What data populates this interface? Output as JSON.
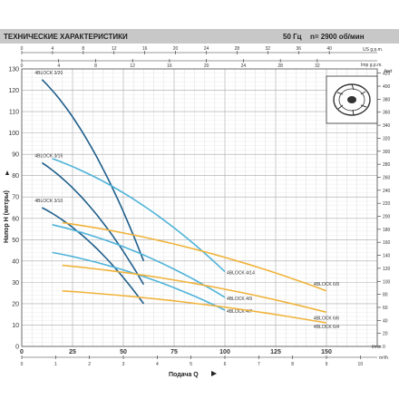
{
  "header": {
    "title": "ТЕХНИЧЕСКИЕ ХАРАКТЕРИСТИКИ",
    "freq": "50 Гц",
    "speed": "n= 2900 об/мин"
  },
  "icon": "impeller-icon",
  "colors": {
    "header_bg": "#c8c8c8",
    "grid": "#bfbfbf",
    "dark_blue": "#1f5f8b",
    "light_blue": "#4fb3d9",
    "orange": "#f0b33c"
  },
  "chart_data": {
    "type": "line",
    "xlabel": "Подача Q",
    "ylabel": "Напор H (метры)",
    "xlim": [
      0,
      175
    ],
    "ylim": [
      0,
      130
    ],
    "x_unit": "l/min",
    "x_ticks": [
      "0",
      "25",
      "50",
      "75",
      "100",
      "125",
      "150"
    ],
    "y_ticks_left": [
      "0",
      "10",
      "20",
      "30",
      "40",
      "50",
      "60",
      "70",
      "80",
      "90",
      "100",
      "110",
      "120",
      "130"
    ],
    "secondary_axes": {
      "top_us_gpm": {
        "unit": "US g.p.m.",
        "ticks": [
          "0",
          "4",
          "8",
          "12",
          "16",
          "20",
          "24",
          "28",
          "32",
          "36",
          "40"
        ]
      },
      "top_imp_gpm": {
        "unit": "Imp g.p.m.",
        "ticks": [
          "0",
          "4",
          "8",
          "12",
          "16",
          "20",
          "24",
          "28",
          "32"
        ]
      },
      "right_feet": {
        "unit": "feet",
        "ticks": [
          "0",
          "20",
          "40",
          "60",
          "80",
          "100",
          "120",
          "140",
          "160",
          "180",
          "200",
          "220",
          "240",
          "260",
          "280",
          "300",
          "320",
          "340",
          "360",
          "380",
          "400",
          "420"
        ]
      },
      "bottom_m3h": {
        "unit": "m³/h",
        "ticks": [
          "0",
          "1",
          "2",
          "3",
          "4",
          "5",
          "6",
          "7",
          "8",
          "9",
          "10"
        ]
      }
    },
    "series": [
      {
        "name": "4BLOCK 3/20",
        "color": "#1f5f8b",
        "x": [
          10,
          60
        ],
        "y": [
          125,
          40
        ]
      },
      {
        "name": "4BLOCK 3/15",
        "color": "#1f5f8b",
        "x": [
          10,
          60
        ],
        "y": [
          86,
          29
        ]
      },
      {
        "name": "4BLOCK 3/10",
        "color": "#1f5f8b",
        "x": [
          10,
          60
        ],
        "y": [
          65,
          20
        ]
      },
      {
        "name": "4BLOCK 4/14",
        "color": "#4fb3d9",
        "x": [
          15,
          100
        ],
        "y": [
          88,
          35
        ]
      },
      {
        "name": "4BLOCK 4/9",
        "color": "#4fb3d9",
        "x": [
          15,
          100
        ],
        "y": [
          57,
          23
        ]
      },
      {
        "name": "4BLOCK 4/7",
        "color": "#4fb3d9",
        "x": [
          15,
          100
        ],
        "y": [
          44,
          17
        ]
      },
      {
        "name": "4BLOCK 6/9",
        "color": "#f0b33c",
        "x": [
          20,
          150
        ],
        "y": [
          58,
          26
        ]
      },
      {
        "name": "4BLOCK 6/6",
        "color": "#f0b33c",
        "x": [
          20,
          150
        ],
        "y": [
          38,
          16
        ]
      },
      {
        "name": "4BLOCK 6/4",
        "color": "#f0b33c",
        "x": [
          20,
          150
        ],
        "y": [
          26,
          11
        ]
      }
    ]
  }
}
